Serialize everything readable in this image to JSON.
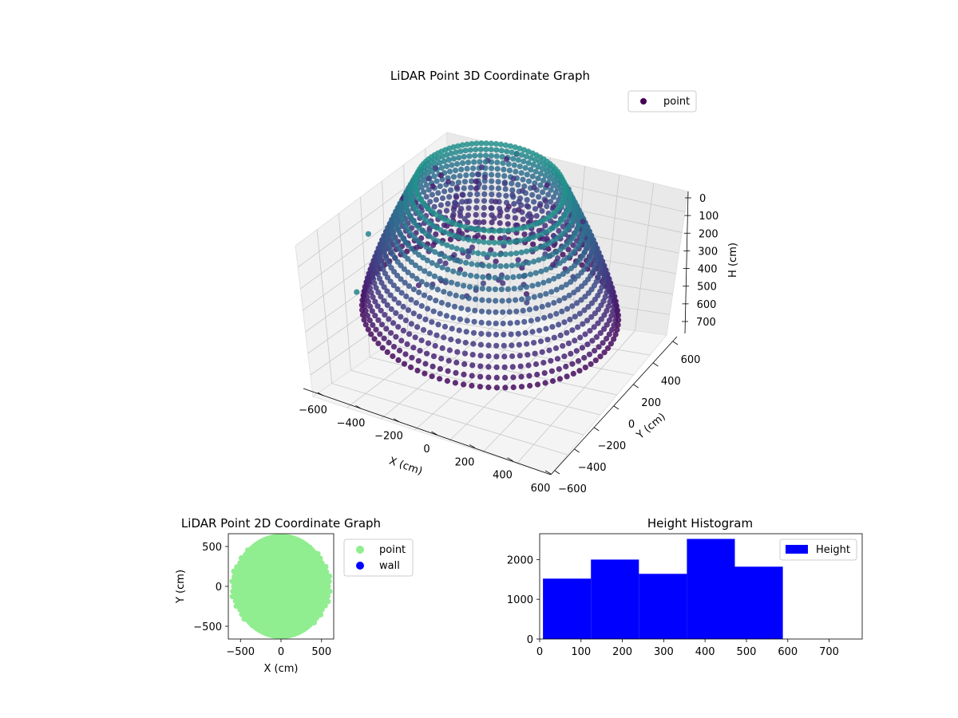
{
  "chart_data": [
    {
      "type": "scatter3d",
      "title": "LiDAR Point 3D Coordinate Graph",
      "xlabel": "X (cm)",
      "ylabel": "Y (cm)",
      "zlabel": "H (cm)",
      "xticks": [
        "−600",
        "−400",
        "−200",
        "0",
        "200",
        "400",
        "600"
      ],
      "yticks": [
        "600",
        "400",
        "200",
        "0",
        "−200",
        "−400",
        "−600"
      ],
      "zticks": [
        "0",
        "100",
        "200",
        "300",
        "400",
        "500",
        "600",
        "700"
      ],
      "xlim": [
        -650,
        650
      ],
      "ylim": [
        -650,
        650
      ],
      "zlim": [
        750,
        0
      ],
      "legend": [
        {
          "label": "point",
          "color": "#440154"
        }
      ],
      "legend_position": "top-right",
      "colormap": "viridis",
      "grid": true,
      "shape": "hollow ring of vertical point columns",
      "outer_radius": 600,
      "inner_radius": 350,
      "height_range": [
        0,
        590
      ],
      "outliers": [
        {
          "x": -640,
          "y": 0,
          "h": 420
        },
        {
          "x": -630,
          "y": -140,
          "h": 620
        }
      ]
    },
    {
      "type": "scatter",
      "title": "LiDAR Point 2D Coordinate Graph",
      "xlabel": "X (cm)",
      "ylabel": "Y (cm)",
      "xticks": [
        "−500",
        "0",
        "500"
      ],
      "yticks": [
        "500",
        "0",
        "−500"
      ],
      "xlim": [
        -650,
        650
      ],
      "ylim": [
        -660,
        660
      ],
      "legend": [
        {
          "label": "point",
          "color": "#90ee90"
        },
        {
          "label": "wall",
          "color": "#0000ff"
        }
      ],
      "legend_position": "outside-right",
      "point_cloud_radius": 600,
      "point_color": "#90ee90"
    },
    {
      "type": "bar",
      "title": "Height Histogram",
      "xticks": [
        "0",
        "100",
        "200",
        "300",
        "400",
        "500",
        "600",
        "700"
      ],
      "yticks": [
        "0",
        "1000",
        "2000"
      ],
      "xlim": [
        0,
        780
      ],
      "ylim": [
        0,
        2650
      ],
      "bin_edges": [
        8,
        124,
        240,
        356,
        472,
        588
      ],
      "values": [
        1520,
        2000,
        1640,
        2520,
        1820
      ],
      "legend": [
        {
          "label": "Height",
          "color": "#0000ff"
        }
      ],
      "legend_position": "top-right",
      "bar_color": "#0000ff"
    }
  ]
}
